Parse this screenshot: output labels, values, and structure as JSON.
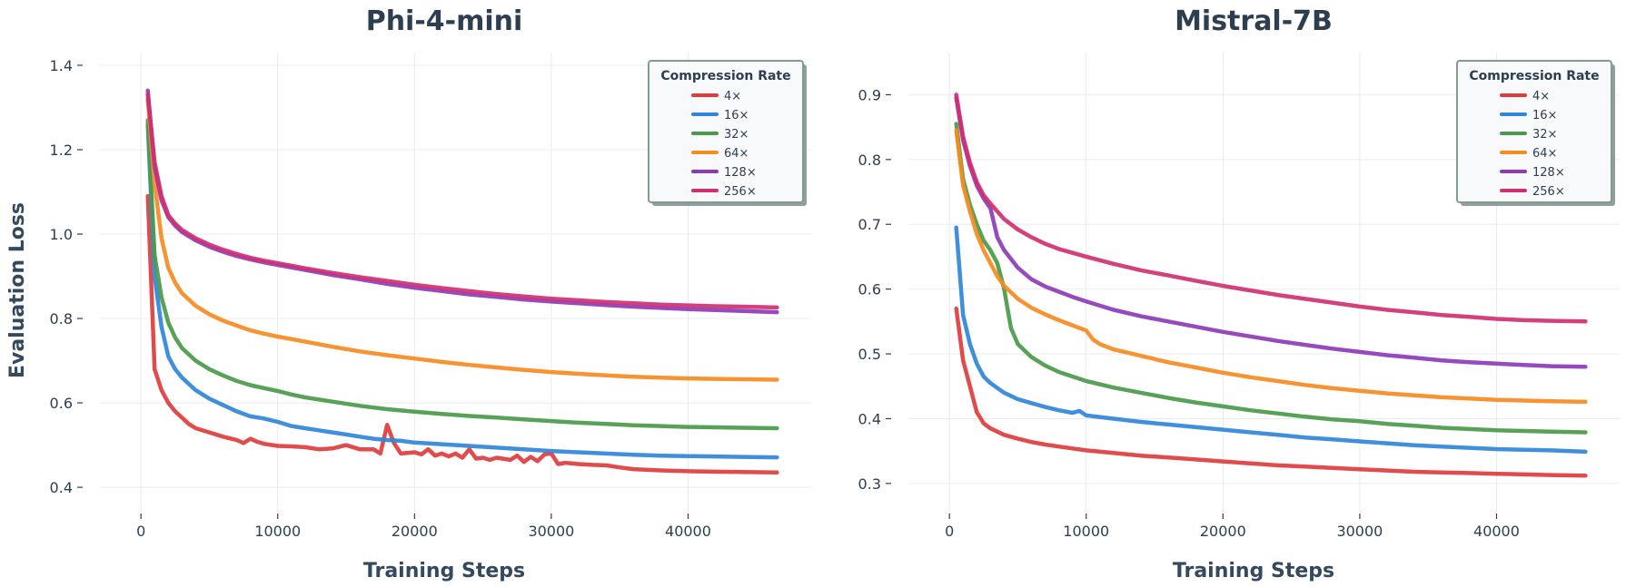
{
  "chart_data": [
    {
      "type": "line",
      "title": "Phi-4-mini",
      "xlabel": "Training Steps",
      "ylabel": "Evaluation Loss",
      "xlim": [
        -3000,
        49000
      ],
      "ylim": [
        0.34,
        1.43
      ],
      "xticks": [
        0,
        10000,
        20000,
        30000,
        40000
      ],
      "xtick_labels": [
        "0",
        "10000",
        "20000",
        "30000",
        "40000"
      ],
      "yticks": [
        0.4,
        0.6,
        0.8,
        1.0,
        1.2,
        1.4
      ],
      "ytick_labels": [
        "0.4",
        "0.6",
        "0.8",
        "1.0",
        "1.2",
        "1.4"
      ],
      "grid": true,
      "legend": {
        "title": "Compression Rate",
        "position": "top-right"
      },
      "series": [
        {
          "name": "4×",
          "color": "#e03c3c",
          "x": [
            500,
            1000,
            1500,
            2000,
            2500,
            3000,
            3500,
            4000,
            5000,
            6000,
            7000,
            7500,
            8000,
            8500,
            9000,
            10000,
            11000,
            12000,
            13000,
            14000,
            15000,
            16000,
            17000,
            17500,
            18000,
            18500,
            19000,
            20000,
            20500,
            21000,
            21500,
            22000,
            22500,
            23000,
            23500,
            24000,
            24500,
            25000,
            25500,
            26000,
            27000,
            27500,
            28000,
            28500,
            29000,
            29500,
            30000,
            30500,
            31000,
            32000,
            33000,
            34000,
            35000,
            36000,
            38000,
            40000,
            42000,
            44000,
            46500
          ],
          "y": [
            1.09,
            0.68,
            0.63,
            0.6,
            0.58,
            0.565,
            0.55,
            0.54,
            0.53,
            0.52,
            0.512,
            0.505,
            0.515,
            0.508,
            0.503,
            0.498,
            0.497,
            0.495,
            0.49,
            0.492,
            0.5,
            0.49,
            0.49,
            0.48,
            0.548,
            0.505,
            0.48,
            0.483,
            0.478,
            0.49,
            0.475,
            0.48,
            0.473,
            0.48,
            0.47,
            0.49,
            0.468,
            0.47,
            0.465,
            0.47,
            0.465,
            0.475,
            0.46,
            0.472,
            0.462,
            0.478,
            0.48,
            0.455,
            0.458,
            0.455,
            0.453,
            0.452,
            0.447,
            0.443,
            0.44,
            0.438,
            0.437,
            0.436,
            0.435
          ]
        },
        {
          "name": "16×",
          "color": "#2f86da",
          "x": [
            500,
            1000,
            1500,
            2000,
            2500,
            3000,
            4000,
            5000,
            6000,
            7000,
            8000,
            9000,
            10000,
            11000,
            12000,
            13000,
            14000,
            15000,
            16000,
            17000,
            18000,
            19000,
            20000,
            22000,
            24000,
            26000,
            28000,
            30000,
            32000,
            34000,
            36000,
            38000,
            40000,
            42000,
            44000,
            46500
          ],
          "y": [
            1.26,
            0.9,
            0.78,
            0.71,
            0.68,
            0.66,
            0.63,
            0.61,
            0.595,
            0.58,
            0.568,
            0.563,
            0.555,
            0.545,
            0.54,
            0.535,
            0.53,
            0.525,
            0.52,
            0.515,
            0.512,
            0.51,
            0.506,
            0.502,
            0.498,
            0.494,
            0.49,
            0.486,
            0.483,
            0.48,
            0.477,
            0.475,
            0.474,
            0.473,
            0.472,
            0.471
          ]
        },
        {
          "name": "32×",
          "color": "#4a9a4a",
          "x": [
            500,
            1000,
            1500,
            2000,
            2500,
            3000,
            4000,
            5000,
            6000,
            7000,
            8000,
            9000,
            10000,
            11000,
            12000,
            14000,
            16000,
            18000,
            20000,
            22000,
            24000,
            26000,
            28000,
            30000,
            32000,
            34000,
            36000,
            38000,
            40000,
            42000,
            44000,
            46500
          ],
          "y": [
            1.27,
            0.95,
            0.85,
            0.79,
            0.755,
            0.73,
            0.7,
            0.68,
            0.665,
            0.652,
            0.642,
            0.635,
            0.628,
            0.62,
            0.613,
            0.603,
            0.593,
            0.585,
            0.579,
            0.574,
            0.569,
            0.565,
            0.561,
            0.557,
            0.553,
            0.55,
            0.547,
            0.545,
            0.543,
            0.542,
            0.541,
            0.54
          ]
        },
        {
          "name": "64×",
          "color": "#f68b1f",
          "x": [
            500,
            1000,
            1500,
            2000,
            2500,
            3000,
            4000,
            5000,
            6000,
            7000,
            8000,
            9000,
            10000,
            12000,
            14000,
            16000,
            18000,
            20000,
            22000,
            24000,
            26000,
            28000,
            30000,
            32000,
            34000,
            36000,
            38000,
            40000,
            42000,
            44000,
            46500
          ],
          "y": [
            1.32,
            1.12,
            0.99,
            0.92,
            0.885,
            0.86,
            0.83,
            0.81,
            0.795,
            0.783,
            0.772,
            0.764,
            0.757,
            0.745,
            0.733,
            0.722,
            0.713,
            0.705,
            0.697,
            0.69,
            0.684,
            0.678,
            0.673,
            0.669,
            0.665,
            0.662,
            0.66,
            0.658,
            0.657,
            0.656,
            0.655
          ]
        },
        {
          "name": "128×",
          "color": "#8e3ab8",
          "x": [
            500,
            1000,
            1500,
            2000,
            2500,
            3000,
            4000,
            5000,
            6000,
            7000,
            8000,
            9000,
            10000,
            12000,
            14000,
            16000,
            18000,
            20000,
            22000,
            24000,
            26000,
            28000,
            30000,
            32000,
            34000,
            36000,
            38000,
            40000,
            42000,
            44000,
            46500
          ],
          "y": [
            1.34,
            1.16,
            1.08,
            1.04,
            1.02,
            1.005,
            0.985,
            0.97,
            0.958,
            0.948,
            0.94,
            0.933,
            0.927,
            0.915,
            0.903,
            0.893,
            0.882,
            0.873,
            0.865,
            0.857,
            0.851,
            0.845,
            0.84,
            0.836,
            0.832,
            0.828,
            0.825,
            0.822,
            0.82,
            0.818,
            0.815
          ]
        },
        {
          "name": "256×",
          "color": "#d03070",
          "x": [
            500,
            1000,
            1500,
            2000,
            2500,
            3000,
            4000,
            5000,
            6000,
            7000,
            8000,
            9000,
            10000,
            12000,
            14000,
            16000,
            18000,
            20000,
            22000,
            24000,
            26000,
            28000,
            30000,
            32000,
            34000,
            36000,
            38000,
            40000,
            42000,
            44000,
            46500
          ],
          "y": [
            1.33,
            1.17,
            1.09,
            1.045,
            1.025,
            1.01,
            0.99,
            0.975,
            0.963,
            0.953,
            0.944,
            0.937,
            0.931,
            0.919,
            0.908,
            0.898,
            0.889,
            0.88,
            0.872,
            0.865,
            0.858,
            0.852,
            0.847,
            0.843,
            0.839,
            0.836,
            0.833,
            0.831,
            0.829,
            0.828,
            0.826
          ]
        }
      ]
    },
    {
      "type": "line",
      "title": "Mistral-7B",
      "xlabel": "Training Steps",
      "ylabel": "",
      "xlim": [
        -3000,
        49000
      ],
      "ylim": [
        0.255,
        0.965
      ],
      "xticks": [
        0,
        10000,
        20000,
        30000,
        40000
      ],
      "xtick_labels": [
        "0",
        "10000",
        "20000",
        "30000",
        "40000"
      ],
      "yticks": [
        0.3,
        0.4,
        0.5,
        0.6,
        0.7,
        0.8,
        0.9
      ],
      "ytick_labels": [
        "0.3",
        "0.4",
        "0.5",
        "0.6",
        "0.7",
        "0.8",
        "0.9"
      ],
      "grid": true,
      "legend": {
        "title": "Compression Rate",
        "position": "top-right"
      },
      "series": [
        {
          "name": "4×",
          "color": "#e03c3c",
          "x": [
            500,
            1000,
            1500,
            2000,
            2500,
            3000,
            4000,
            5000,
            6000,
            7000,
            8000,
            9000,
            10000,
            12000,
            14000,
            16000,
            18000,
            20000,
            22000,
            24000,
            26000,
            28000,
            30000,
            32000,
            34000,
            36000,
            38000,
            40000,
            42000,
            44000,
            46500
          ],
          "y": [
            0.57,
            0.49,
            0.45,
            0.41,
            0.393,
            0.385,
            0.375,
            0.369,
            0.364,
            0.36,
            0.357,
            0.354,
            0.351,
            0.347,
            0.343,
            0.34,
            0.337,
            0.334,
            0.331,
            0.328,
            0.326,
            0.324,
            0.322,
            0.32,
            0.318,
            0.317,
            0.316,
            0.315,
            0.314,
            0.313,
            0.312
          ]
        },
        {
          "name": "16×",
          "color": "#2f86da",
          "x": [
            500,
            1000,
            1500,
            2000,
            2500,
            3000,
            4000,
            5000,
            6000,
            7000,
            8000,
            9000,
            9500,
            10000,
            12000,
            14000,
            16000,
            18000,
            20000,
            22000,
            24000,
            26000,
            28000,
            30000,
            32000,
            34000,
            36000,
            38000,
            40000,
            42000,
            44000,
            46500
          ],
          "y": [
            0.695,
            0.56,
            0.515,
            0.485,
            0.465,
            0.455,
            0.44,
            0.43,
            0.424,
            0.418,
            0.413,
            0.409,
            0.412,
            0.405,
            0.4,
            0.395,
            0.391,
            0.387,
            0.383,
            0.379,
            0.375,
            0.371,
            0.368,
            0.365,
            0.362,
            0.359,
            0.357,
            0.355,
            0.353,
            0.352,
            0.351,
            0.349
          ]
        },
        {
          "name": "32×",
          "color": "#4a9a4a",
          "x": [
            500,
            1000,
            1500,
            2000,
            2500,
            3000,
            3500,
            4000,
            4500,
            5000,
            6000,
            7000,
            8000,
            9000,
            10000,
            12000,
            14000,
            16000,
            18000,
            20000,
            22000,
            24000,
            26000,
            28000,
            30000,
            32000,
            34000,
            36000,
            38000,
            40000,
            42000,
            44000,
            46500
          ],
          "y": [
            0.855,
            0.77,
            0.73,
            0.7,
            0.675,
            0.66,
            0.64,
            0.6,
            0.54,
            0.515,
            0.495,
            0.482,
            0.472,
            0.465,
            0.458,
            0.448,
            0.44,
            0.432,
            0.425,
            0.419,
            0.413,
            0.408,
            0.403,
            0.399,
            0.396,
            0.392,
            0.389,
            0.386,
            0.384,
            0.382,
            0.381,
            0.38,
            0.379
          ]
        },
        {
          "name": "64×",
          "color": "#f68b1f",
          "x": [
            500,
            1000,
            1500,
            2000,
            2500,
            3000,
            3500,
            4000,
            5000,
            6000,
            7000,
            8000,
            9000,
            10000,
            10500,
            11000,
            12000,
            14000,
            16000,
            18000,
            20000,
            22000,
            24000,
            26000,
            28000,
            30000,
            32000,
            34000,
            36000,
            38000,
            40000,
            42000,
            44000,
            46500
          ],
          "y": [
            0.845,
            0.76,
            0.72,
            0.685,
            0.66,
            0.64,
            0.62,
            0.605,
            0.585,
            0.571,
            0.561,
            0.552,
            0.544,
            0.536,
            0.522,
            0.515,
            0.507,
            0.497,
            0.487,
            0.479,
            0.471,
            0.464,
            0.458,
            0.452,
            0.447,
            0.443,
            0.439,
            0.436,
            0.433,
            0.431,
            0.429,
            0.428,
            0.427,
            0.426
          ]
        },
        {
          "name": "128×",
          "color": "#8e3ab8",
          "x": [
            500,
            1000,
            1500,
            2000,
            2500,
            3000,
            3500,
            4000,
            5000,
            6000,
            7000,
            8000,
            9000,
            10000,
            12000,
            14000,
            16000,
            18000,
            20000,
            22000,
            24000,
            26000,
            28000,
            30000,
            32000,
            34000,
            36000,
            38000,
            40000,
            42000,
            44000,
            46500
          ],
          "y": [
            0.895,
            0.83,
            0.79,
            0.76,
            0.74,
            0.725,
            0.68,
            0.66,
            0.633,
            0.615,
            0.604,
            0.596,
            0.588,
            0.581,
            0.568,
            0.558,
            0.55,
            0.542,
            0.534,
            0.527,
            0.52,
            0.514,
            0.508,
            0.503,
            0.498,
            0.494,
            0.49,
            0.487,
            0.485,
            0.483,
            0.481,
            0.48
          ]
        },
        {
          "name": "256×",
          "color": "#d03070",
          "x": [
            500,
            1000,
            1500,
            2000,
            2500,
            3000,
            3500,
            4000,
            5000,
            6000,
            7000,
            8000,
            9000,
            10000,
            12000,
            14000,
            16000,
            18000,
            20000,
            22000,
            24000,
            26000,
            28000,
            30000,
            32000,
            34000,
            36000,
            38000,
            40000,
            42000,
            44000,
            46500
          ],
          "y": [
            0.9,
            0.835,
            0.795,
            0.765,
            0.745,
            0.732,
            0.72,
            0.708,
            0.692,
            0.68,
            0.67,
            0.662,
            0.656,
            0.65,
            0.639,
            0.629,
            0.621,
            0.613,
            0.605,
            0.598,
            0.591,
            0.585,
            0.579,
            0.573,
            0.568,
            0.564,
            0.56,
            0.557,
            0.554,
            0.552,
            0.551,
            0.55
          ]
        }
      ]
    }
  ]
}
